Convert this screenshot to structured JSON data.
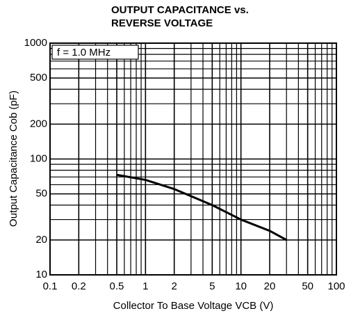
{
  "chart_data": {
    "type": "line",
    "title": [
      "OUTPUT CAPACITANCE vs.",
      "REVERSE VOLTAGE"
    ],
    "xlabel": "Collector To Base Voltage VCB (V)",
    "ylabel": "Output Capacitance Cob (pF)",
    "annotation": "f = 1.0 MHz",
    "xscale": "log",
    "yscale": "log",
    "xlim": [
      0.1,
      100
    ],
    "ylim": [
      10,
      1000
    ],
    "xticks": [
      0.1,
      0.2,
      0.5,
      1,
      2,
      5,
      10,
      20,
      50,
      100
    ],
    "yticks": [
      10,
      20,
      50,
      100,
      200,
      500,
      1000
    ],
    "x_minor_grid": [
      0.3,
      0.4,
      0.6,
      0.7,
      0.8,
      0.9,
      3,
      4,
      6,
      7,
      8,
      9,
      30,
      40,
      60,
      70,
      80,
      90
    ],
    "y_minor_grid": [
      30,
      40,
      60,
      70,
      80,
      90,
      300,
      400,
      600,
      700,
      800,
      900
    ],
    "grid": true,
    "series": [
      {
        "color": "#000000",
        "x": [
          0.5,
          1,
          2,
          5,
          10,
          20,
          30
        ],
        "values": [
          73,
          66,
          55,
          40,
          30,
          24,
          20
        ]
      }
    ]
  }
}
